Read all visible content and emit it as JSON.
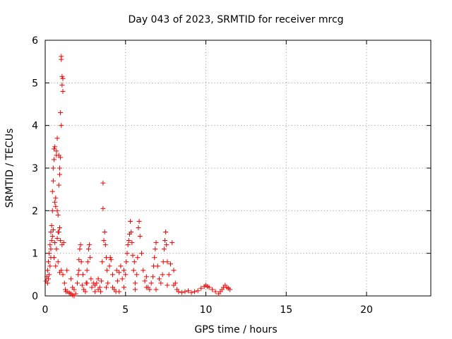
{
  "chart_data": {
    "type": "scatter",
    "title": "Day 043 of 2023, SRMTID for receiver mrcg",
    "xlabel": "GPS time / hours",
    "ylabel": "SRMTID / TECUs",
    "xlim": [
      0,
      24
    ],
    "ylim": [
      0,
      6
    ],
    "x_ticks": [
      0,
      5,
      10,
      15,
      20
    ],
    "y_ticks": [
      0,
      1,
      2,
      3,
      4,
      5,
      6
    ],
    "grid": true,
    "marker": "plus",
    "color": "#ee0000",
    "series": [
      {
        "name": "SRMTID",
        "points": [
          [
            0.05,
            0.35
          ],
          [
            0.1,
            0.45
          ],
          [
            0.15,
            0.6
          ],
          [
            0.2,
            0.8
          ],
          [
            0.25,
            1.0
          ],
          [
            0.3,
            1.2
          ],
          [
            0.35,
            1.5
          ],
          [
            0.4,
            1.65
          ],
          [
            0.45,
            2.0
          ],
          [
            0.45,
            2.45
          ],
          [
            0.5,
            2.7
          ],
          [
            0.5,
            3.0
          ],
          [
            0.55,
            3.2
          ],
          [
            0.55,
            3.45
          ],
          [
            0.6,
            3.5
          ],
          [
            0.6,
            2.2
          ],
          [
            0.65,
            2.1
          ],
          [
            0.65,
            2.3
          ],
          [
            0.7,
            3.4
          ],
          [
            0.7,
            3.3
          ],
          [
            0.75,
            3.7
          ],
          [
            0.75,
            2.0
          ],
          [
            0.8,
            1.9
          ],
          [
            0.8,
            1.5
          ],
          [
            0.85,
            3.3
          ],
          [
            0.85,
            2.6
          ],
          [
            0.9,
            2.85
          ],
          [
            0.9,
            3.0
          ],
          [
            0.95,
            3.25
          ],
          [
            0.95,
            4.3
          ],
          [
            1.0,
            4.0
          ],
          [
            1.0,
            5.55
          ],
          [
            1.0,
            5.62
          ],
          [
            1.05,
            5.15
          ],
          [
            1.05,
            4.95
          ],
          [
            1.1,
            4.8
          ],
          [
            1.1,
            5.1
          ],
          [
            1.15,
            1.25
          ],
          [
            0.9,
            1.6
          ],
          [
            0.85,
            1.5
          ],
          [
            0.75,
            1.35
          ],
          [
            0.7,
            1.1
          ],
          [
            0.6,
            1.25
          ],
          [
            0.5,
            1.55
          ],
          [
            0.4,
            1.3
          ],
          [
            0.35,
            0.9
          ],
          [
            0.3,
            0.7
          ],
          [
            0.25,
            0.5
          ],
          [
            0.2,
            0.4
          ],
          [
            0.55,
            0.9
          ],
          [
            0.65,
            0.7
          ],
          [
            0.8,
            0.8
          ],
          [
            0.9,
            0.55
          ],
          [
            1.0,
            0.6
          ],
          [
            1.1,
            0.5
          ],
          [
            1.2,
            0.3
          ],
          [
            1.25,
            0.15
          ],
          [
            1.3,
            0.1
          ],
          [
            1.35,
            0.6
          ],
          [
            1.4,
            0.1
          ],
          [
            1.5,
            0.07
          ],
          [
            1.6,
            0.05
          ],
          [
            1.7,
            0.02
          ],
          [
            1.8,
            0.0
          ],
          [
            1.9,
            0.05
          ],
          [
            2.0,
            0.3
          ],
          [
            2.05,
            0.5
          ],
          [
            2.1,
            0.85
          ],
          [
            2.15,
            1.1
          ],
          [
            2.2,
            1.2
          ],
          [
            2.25,
            0.8
          ],
          [
            2.3,
            0.25
          ],
          [
            2.4,
            0.15
          ],
          [
            2.5,
            0.1
          ],
          [
            2.6,
            0.6
          ],
          [
            2.65,
            0.8
          ],
          [
            2.7,
            1.1
          ],
          [
            2.75,
            1.2
          ],
          [
            2.8,
            0.9
          ],
          [
            2.85,
            0.4
          ],
          [
            2.9,
            0.2
          ],
          [
            3.0,
            0.3
          ],
          [
            3.1,
            0.25
          ],
          [
            3.2,
            0.3
          ],
          [
            3.3,
            0.15
          ],
          [
            3.4,
            0.2
          ],
          [
            3.5,
            0.35
          ],
          [
            3.55,
            0.8
          ],
          [
            3.6,
            2.05
          ],
          [
            3.6,
            2.65
          ],
          [
            3.65,
            1.3
          ],
          [
            3.7,
            1.5
          ],
          [
            3.75,
            1.2
          ],
          [
            3.8,
            0.9
          ],
          [
            3.85,
            0.6
          ],
          [
            3.9,
            0.3
          ],
          [
            4.0,
            0.7
          ],
          [
            4.05,
            0.9
          ],
          [
            4.1,
            0.85
          ],
          [
            4.2,
            0.5
          ],
          [
            4.3,
            0.15
          ],
          [
            4.4,
            0.1
          ],
          [
            4.5,
            0.35
          ],
          [
            4.6,
            0.55
          ],
          [
            4.7,
            0.7
          ],
          [
            4.8,
            0.4
          ],
          [
            4.9,
            0.2
          ],
          [
            5.0,
            0.5
          ],
          [
            5.05,
            0.8
          ],
          [
            5.1,
            1.0
          ],
          [
            5.15,
            1.2
          ],
          [
            5.2,
            1.3
          ],
          [
            5.25,
            1.45
          ],
          [
            5.3,
            1.75
          ],
          [
            5.35,
            1.5
          ],
          [
            5.4,
            1.25
          ],
          [
            5.45,
            0.95
          ],
          [
            5.5,
            0.6
          ],
          [
            5.6,
            0.3
          ],
          [
            5.7,
            0.5
          ],
          [
            5.75,
            0.9
          ],
          [
            5.8,
            1.6
          ],
          [
            5.85,
            1.75
          ],
          [
            5.9,
            1.4
          ],
          [
            6.0,
            1.0
          ],
          [
            6.1,
            0.6
          ],
          [
            6.2,
            0.35
          ],
          [
            6.3,
            0.45
          ],
          [
            6.4,
            0.2
          ],
          [
            6.5,
            0.15
          ],
          [
            6.6,
            0.3
          ],
          [
            6.7,
            0.45
          ],
          [
            6.75,
            0.7
          ],
          [
            6.8,
            0.9
          ],
          [
            6.85,
            1.1
          ],
          [
            6.9,
            1.25
          ],
          [
            7.0,
            0.7
          ],
          [
            7.1,
            0.4
          ],
          [
            7.2,
            0.3
          ],
          [
            7.3,
            0.5
          ],
          [
            7.35,
            0.8
          ],
          [
            7.4,
            1.1
          ],
          [
            7.45,
            1.3
          ],
          [
            7.5,
            1.5
          ],
          [
            7.55,
            1.2
          ],
          [
            7.6,
            0.8
          ],
          [
            7.7,
            0.5
          ],
          [
            7.8,
            0.75
          ],
          [
            7.9,
            1.25
          ],
          [
            8.0,
            0.6
          ],
          [
            8.1,
            0.3
          ],
          [
            8.2,
            0.15
          ],
          [
            8.3,
            0.1
          ],
          [
            8.5,
            0.08
          ],
          [
            8.7,
            0.1
          ],
          [
            8.9,
            0.12
          ],
          [
            9.1,
            0.08
          ],
          [
            9.3,
            0.1
          ],
          [
            9.5,
            0.12
          ],
          [
            9.7,
            0.18
          ],
          [
            9.9,
            0.22
          ],
          [
            10.0,
            0.25
          ],
          [
            10.1,
            0.22
          ],
          [
            10.2,
            0.2
          ],
          [
            10.4,
            0.15
          ],
          [
            10.6,
            0.1
          ],
          [
            10.8,
            0.05
          ],
          [
            10.9,
            0.1
          ],
          [
            11.0,
            0.15
          ],
          [
            11.1,
            0.2
          ],
          [
            11.2,
            0.25
          ],
          [
            11.3,
            0.2
          ],
          [
            11.4,
            0.18
          ],
          [
            11.5,
            0.15
          ],
          [
            1.6,
            0.4
          ],
          [
            1.7,
            0.2
          ],
          [
            1.8,
            0.15
          ],
          [
            2.1,
            0.6
          ],
          [
            2.6,
            0.3
          ],
          [
            3.1,
            0.1
          ],
          [
            3.3,
            0.4
          ],
          [
            3.8,
            0.2
          ],
          [
            4.2,
            0.2
          ],
          [
            4.6,
            0.1
          ],
          [
            4.9,
            0.6
          ],
          [
            5.6,
            0.15
          ],
          [
            6.3,
            0.2
          ],
          [
            6.9,
            0.15
          ],
          [
            7.6,
            0.25
          ],
          [
            8.0,
            0.25
          ],
          [
            0.15,
            0.3
          ],
          [
            0.35,
            1.1
          ],
          [
            0.45,
            1.4
          ],
          [
            0.95,
            1.3
          ],
          [
            1.05,
            1.2
          ],
          [
            2.35,
            0.5
          ],
          [
            2.55,
            0.3
          ],
          [
            3.45,
            0.1
          ],
          [
            4.45,
            0.6
          ],
          [
            5.55,
            0.8
          ]
        ]
      }
    ]
  }
}
